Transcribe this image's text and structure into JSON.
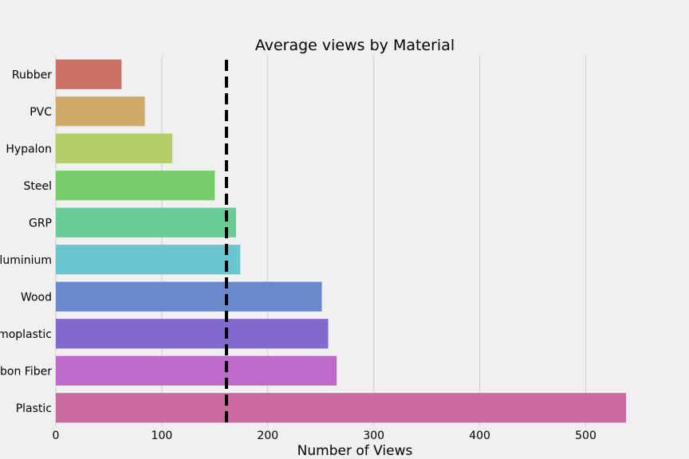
{
  "chart_data": {
    "type": "bar",
    "orientation": "horizontal",
    "title": "Average views by Material",
    "xlabel": "Number of Views",
    "ylabel": "",
    "categories": [
      "Rubber",
      "PVC",
      "Hypalon",
      "Steel",
      "GRP",
      "Aluminium",
      "Wood",
      "Thermoplastic",
      "Carbon Fiber",
      "Plastic"
    ],
    "values": [
      62,
      84,
      110,
      150,
      170,
      174,
      251,
      257,
      265,
      538
    ],
    "colors": [
      "#cd7167",
      "#cfab69",
      "#b4cc68",
      "#76cc69",
      "#69cc94",
      "#69c6cf",
      "#6a89cd",
      "#8169cd",
      "#bf69cc",
      "#cb6a9f"
    ],
    "reference_line": {
      "value": 161,
      "style": "dashed",
      "color": "#000000"
    },
    "xlim": [
      0,
      538
    ],
    "xticks": [
      0,
      100,
      200,
      300,
      400,
      500
    ],
    "grid": "vertical"
  }
}
